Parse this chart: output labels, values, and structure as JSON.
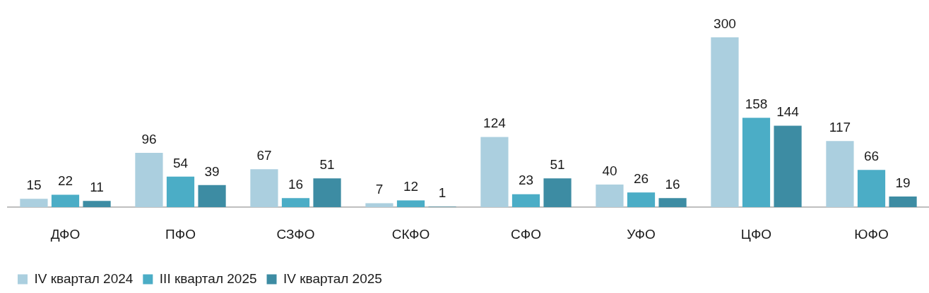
{
  "chart_data": {
    "type": "bar",
    "categories": [
      "ДФО",
      "ПФО",
      "СЗФО",
      "СКФО",
      "СФО",
      "УФО",
      "ЦФО",
      "ЮФО"
    ],
    "series": [
      {
        "name": "IV квартал 2024",
        "color": "#abcfdf",
        "values": [
          15,
          96,
          67,
          7,
          124,
          40,
          300,
          117
        ]
      },
      {
        "name": "III квартал 2025",
        "color": "#4badc6",
        "values": [
          22,
          54,
          16,
          12,
          23,
          26,
          158,
          66
        ]
      },
      {
        "name": "IV квартал 2025",
        "color": "#3d8ca3",
        "values": [
          11,
          39,
          51,
          1,
          51,
          16,
          144,
          19
        ]
      }
    ],
    "data_labels": true,
    "grid": false,
    "legend": "bottom left"
  }
}
